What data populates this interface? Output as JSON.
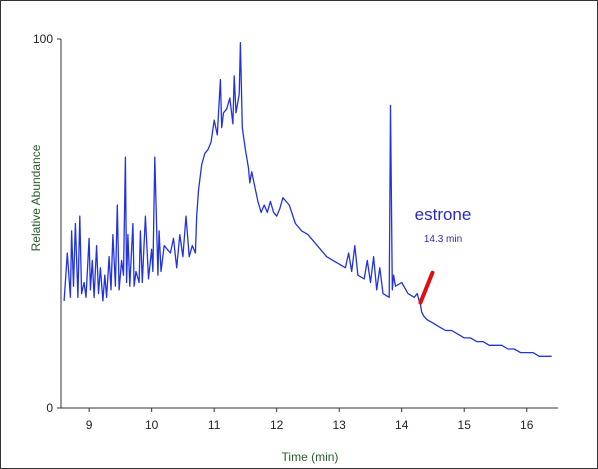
{
  "chart_data": {
    "type": "line",
    "xlabel": "Time (min)",
    "ylabel": "Relative Abundance",
    "xlim": [
      8.55,
      16.5
    ],
    "ylim": [
      0,
      100
    ],
    "x_ticks": [
      "9",
      "10",
      "11",
      "12",
      "13",
      "14",
      "15",
      "16"
    ],
    "y_ticks": [
      "0",
      "100"
    ],
    "colors": {
      "trace": "#2233dd",
      "annotation_text": "#2a2ab8",
      "arrow": "#dd1111",
      "axis": "#333333",
      "label": "#2a5c2a"
    },
    "series": [
      {
        "x": [
          8.6,
          8.65,
          8.7,
          8.72,
          8.75,
          8.78,
          8.82,
          8.85,
          8.88,
          8.92,
          8.95,
          9.0,
          9.02,
          9.05,
          9.08,
          9.12,
          9.15,
          9.18,
          9.22,
          9.25,
          9.28,
          9.32,
          9.35,
          9.38,
          9.42,
          9.45,
          9.48,
          9.52,
          9.55,
          9.58,
          9.6,
          9.62,
          9.65,
          9.7,
          9.72,
          9.75,
          9.8,
          9.82,
          9.85,
          9.9,
          9.95,
          10.0,
          10.02,
          10.05,
          10.1,
          10.12,
          10.15,
          10.2,
          10.3,
          10.35,
          10.4,
          10.45,
          10.5,
          10.55,
          10.6,
          10.65,
          10.7,
          10.72,
          10.75,
          10.8,
          10.85,
          10.9,
          10.95,
          11.0,
          11.05,
          11.1,
          11.12,
          11.15,
          11.2,
          11.25,
          11.3,
          11.32,
          11.35,
          11.4,
          11.42,
          11.45,
          11.5,
          11.55,
          11.57,
          11.6,
          11.65,
          11.7,
          11.75,
          11.8,
          11.85,
          11.9,
          11.95,
          12.0,
          12.05,
          12.1,
          12.2,
          12.3,
          12.4,
          12.5,
          12.6,
          12.7,
          12.8,
          12.9,
          13.0,
          13.1,
          13.15,
          13.2,
          13.25,
          13.3,
          13.4,
          13.45,
          13.5,
          13.55,
          13.6,
          13.65,
          13.7,
          13.8,
          13.82,
          13.85,
          13.87,
          13.9,
          14.0,
          14.1,
          14.2,
          14.25,
          14.28,
          14.3,
          14.32,
          14.35,
          14.4,
          14.5,
          14.6,
          14.7,
          14.8,
          14.9,
          15.0,
          15.1,
          15.2,
          15.3,
          15.4,
          15.5,
          15.6,
          15.7,
          15.8,
          15.9,
          16.0,
          16.1,
          16.2,
          16.3,
          16.4
        ],
        "y": [
          29,
          42,
          30,
          48,
          33,
          50,
          30,
          52,
          31,
          34,
          30,
          46,
          32,
          40,
          30,
          44,
          31,
          38,
          29,
          36,
          30,
          41,
          32,
          47,
          33,
          55,
          32,
          40,
          36,
          68,
          34,
          47,
          33,
          50,
          33,
          37,
          34,
          48,
          34,
          52,
          35,
          43,
          37,
          68,
          36,
          48,
          37,
          44,
          42,
          46,
          38,
          47,
          41,
          52,
          41,
          44,
          42,
          52,
          59,
          66,
          69,
          70,
          72,
          78,
          74,
          89,
          76,
          80,
          81,
          84,
          77,
          90,
          80,
          85,
          99,
          76,
          70,
          65,
          61,
          64,
          60,
          56,
          53,
          55,
          53,
          56,
          53,
          52,
          54,
          57,
          55,
          50,
          48,
          47,
          45,
          43,
          41,
          40,
          39,
          38,
          42,
          37,
          44,
          36,
          35,
          40,
          34,
          41,
          32,
          38,
          31,
          30,
          82,
          32,
          36,
          33,
          34,
          31,
          30,
          31,
          29,
          28,
          26,
          25,
          24,
          23,
          22,
          21,
          21,
          20,
          19,
          19,
          18,
          18,
          17,
          17,
          17,
          16,
          16,
          15,
          15,
          15,
          14,
          14,
          14
        ]
      }
    ],
    "annotation": {
      "compound": "estrone",
      "time_label": "14.3 min",
      "x": 14.3
    }
  }
}
